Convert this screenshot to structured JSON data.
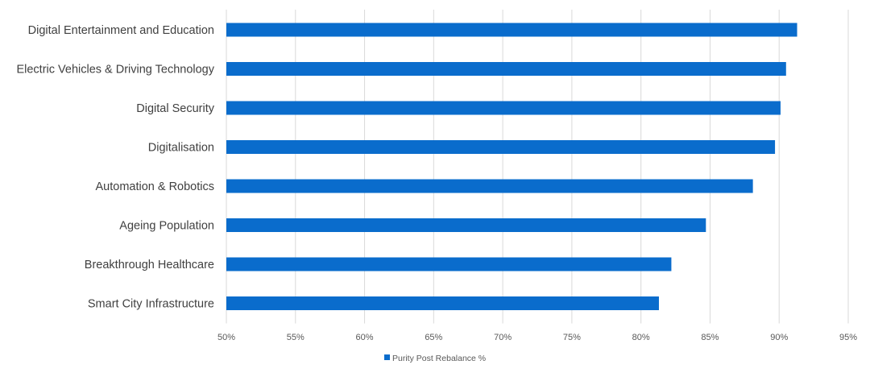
{
  "chart_data": {
    "type": "bar",
    "orientation": "horizontal",
    "categories": [
      "Digital Entertainment and Education",
      "Electric Vehicles & Driving Technology",
      "Digital Security",
      "Digitalisation",
      "Automation & Robotics",
      "Ageing Population",
      "Breakthrough Healthcare",
      "Smart City Infrastructure"
    ],
    "series": [
      {
        "name": "Purity Post Rebalance %",
        "values": [
          91.3,
          90.5,
          90.1,
          89.7,
          88.1,
          84.7,
          82.2,
          81.3
        ]
      }
    ],
    "xlim": [
      50,
      95
    ],
    "xticks": [
      50,
      55,
      60,
      65,
      70,
      75,
      80,
      85,
      90,
      95
    ],
    "tick_suffix": "%",
    "grid": true,
    "legend_position": "bottom",
    "colors": {
      "bar": "#0a6ccc",
      "grid": "#d9d9d9",
      "text": "#404040"
    }
  }
}
